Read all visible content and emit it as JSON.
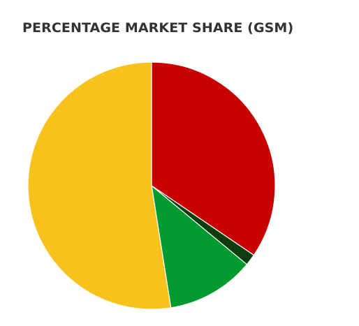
{
  "chart_data": {
    "type": "pie",
    "title": "PERCENTAGE MARKET SHARE (GSM)",
    "slices": [
      {
        "value": 34.5,
        "color": "#c80000"
      },
      {
        "value": 1.5,
        "color": "#0f3d0f"
      },
      {
        "value": 11.5,
        "color": "#009a2e"
      },
      {
        "value": 52.5,
        "color": "#f8c21c"
      }
    ],
    "start_angle_deg": 0,
    "direction": "clockwise",
    "legend": "none"
  }
}
